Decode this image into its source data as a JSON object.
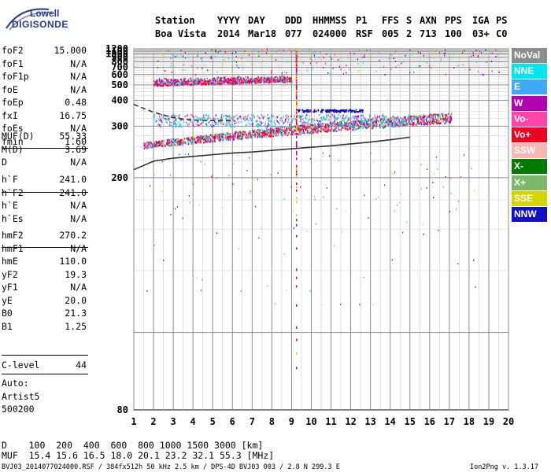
{
  "logo": {
    "line1": "Lowell",
    "line2": "DIGISONDE"
  },
  "header": {
    "labels": [
      "Station",
      "YYYY",
      "DAY",
      "DDD",
      "HHMMSS",
      "P1",
      "FFS",
      "S",
      "AXN",
      "PPS",
      "IGA",
      "PS"
    ],
    "values": [
      "Boa Vista",
      "2014",
      "Mar18",
      "077",
      "024000",
      "RSF",
      "005",
      "2",
      "713",
      "100",
      "03+",
      "C0"
    ]
  },
  "params": {
    "group1": [
      {
        "key": "foF2",
        "val": "15.000"
      },
      {
        "key": "foF1",
        "val": "N/A"
      },
      {
        "key": "foF1p",
        "val": "N/A"
      },
      {
        "key": "foE",
        "val": "N/A"
      },
      {
        "key": "foEp",
        "val": "0.48"
      },
      {
        "key": "fxI",
        "val": "16.75"
      },
      {
        "key": "foEs",
        "val": "N/A"
      },
      {
        "key": "fmin",
        "val": "1.60"
      }
    ],
    "group2": [
      {
        "key": "MUF(D)",
        "val": "55.33"
      },
      {
        "key": "M(D)",
        "val": "3.69"
      },
      {
        "key": "D",
        "val": "N/A"
      }
    ],
    "group3": [
      {
        "key": "h`F",
        "val": "241.0"
      },
      {
        "key": "h`F2",
        "val": "241.0"
      },
      {
        "key": "h`E",
        "val": "N/A"
      },
      {
        "key": "h`Es",
        "val": "N/A"
      }
    ],
    "group4": [
      {
        "key": "hmF2",
        "val": "270.2"
      },
      {
        "key": "hmF1",
        "val": "N/A"
      },
      {
        "key": "hmE",
        "val": "110.0"
      },
      {
        "key": "yF2",
        "val": "19.3"
      },
      {
        "key": "yF1",
        "val": "N/A"
      },
      {
        "key": "yE",
        "val": "20.0"
      },
      {
        "key": "B0",
        "val": "21.3"
      },
      {
        "key": "B1",
        "val": "1.25"
      }
    ],
    "group5": [
      {
        "key": "C-level",
        "val": "44"
      }
    ]
  },
  "notes": {
    "auto": "Auto:",
    "artist": "Artist5",
    "version": "500200"
  },
  "legend": [
    {
      "label": "NoVal",
      "color": "#8c8c8c"
    },
    {
      "label": "NNE",
      "color": "#00e5ee"
    },
    {
      "label": "E",
      "color": "#3fa9f5"
    },
    {
      "label": "W",
      "color": "#b000b0"
    },
    {
      "label": "Vo-",
      "color": "#ff44aa"
    },
    {
      "label": "Vo+",
      "color": "#ee0022"
    },
    {
      "label": "SSW",
      "color": "#f4b8b0"
    },
    {
      "label": "X-",
      "color": "#007a00"
    },
    {
      "label": "X+",
      "color": "#7ab86a"
    },
    {
      "label": "SSE",
      "color": "#d4d400"
    },
    {
      "label": "NNW",
      "color": "#1010c8"
    }
  ],
  "footer": {
    "d_line": "D    100  200  400  600  800 1000 1500 3000 [km]",
    "muf_line": "MUF  15.4 15.6 16.5 18.0 20.1 23.2 32.1 55.3 [MHz]",
    "file_line": "BVJ03_2014077024000.RSF / 384fx512h 50 kHz 2.5 km / DPS-4D BVJ03 003 / 2.8 N 299.3 E",
    "version_line": "Ion2Png v. 1.3.17"
  },
  "chart_data": {
    "type": "scatter",
    "xlim": [
      1,
      20
    ],
    "ylim": [
      80,
      1200
    ],
    "x_ticks": [
      1,
      2,
      3,
      4,
      5,
      6,
      7,
      8,
      9,
      10,
      11,
      12,
      13,
      14,
      15,
      16,
      17,
      18,
      19,
      20
    ],
    "y_ticks": [
      80,
      200,
      300,
      400,
      500,
      600,
      700,
      800,
      900,
      1000,
      1100,
      1200
    ],
    "y_scale": "reciprocal",
    "grid": true,
    "legend_position": "right",
    "traces": [
      {
        "name": "lower-trace",
        "style": "solid",
        "color": "#333333",
        "x": [
          1,
          2,
          3,
          4,
          5,
          6,
          7,
          8,
          9,
          10,
          11,
          12,
          13,
          14,
          15
        ],
        "y": [
          211,
          224,
          229,
          232,
          235,
          238,
          240,
          243,
          246,
          249,
          252,
          256,
          260,
          265,
          271
        ]
      },
      {
        "name": "dashed-trace",
        "style": "dashed",
        "color": "#333333",
        "x": [
          1,
          1.5,
          2,
          2.5,
          3,
          3.5,
          4,
          5,
          6
        ],
        "y": [
          380,
          362,
          347,
          336,
          327,
          322,
          319,
          317,
          317
        ]
      }
    ],
    "echo_bands": [
      {
        "name": "F2 echoes",
        "x": [
          1.5,
          17
        ],
        "y_start": [
          248,
          260
        ],
        "y_end": [
          260,
          330
        ]
      },
      {
        "name": "upper band",
        "x": [
          2,
          15
        ],
        "y": [
          330,
          345
        ]
      },
      {
        "name": "multiple echoes",
        "x": [
          2,
          9
        ],
        "y": [
          480,
          560
        ]
      }
    ]
  }
}
